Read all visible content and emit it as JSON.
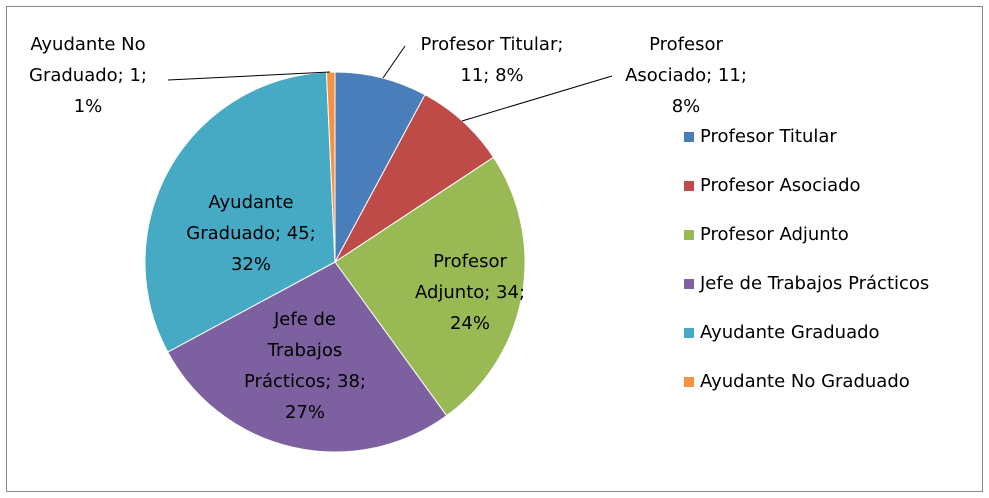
{
  "chart_data": {
    "type": "pie",
    "categories": [
      "Profesor Titular",
      "Profesor Asociado",
      "Profesor Adjunto",
      "Jefe de Trabajos Prácticos",
      "Ayudante Graduado",
      "Ayudante No Graduado"
    ],
    "values": [
      11,
      11,
      34,
      38,
      45,
      1
    ],
    "value_labels": [
      "Profesor Titular; 11; 8%",
      "Profesor Asociado; 11; 8%",
      "Profesor Adjunto; 34; 24%",
      "Jefe de Trabajos Prácticos; 38; 27%",
      "Ayudante Graduado; 45; 32%",
      "Ayudante No Graduado; 1; 1%"
    ],
    "colors": [
      "#4a7ebb",
      "#be4b48",
      "#98b954",
      "#7d60a0",
      "#46aac5",
      "#f69240"
    ],
    "legend": "right"
  }
}
